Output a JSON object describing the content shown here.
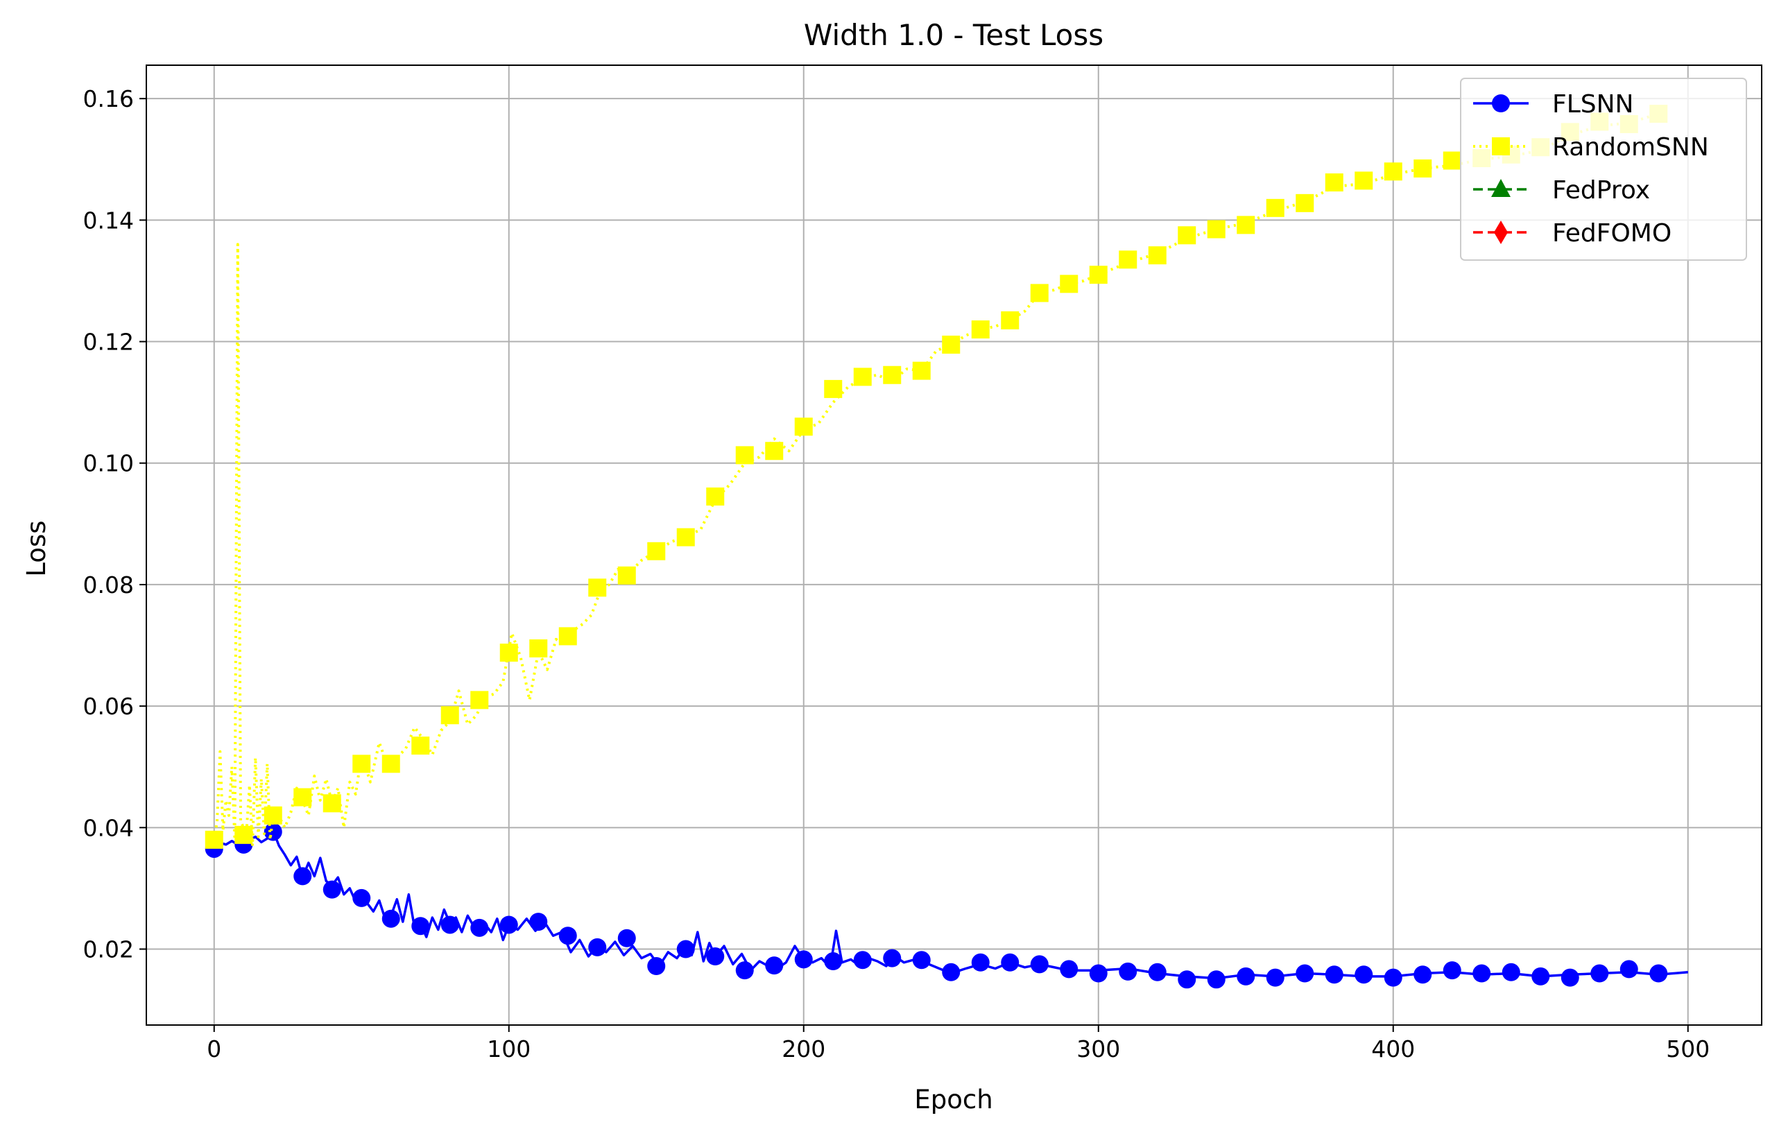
{
  "chart_data": {
    "type": "line",
    "title": "Width 1.0 - Test Loss",
    "xlabel": "Epoch",
    "ylabel": "Loss",
    "xlim": [
      -23,
      525
    ],
    "ylim": [
      0.0075,
      0.1655
    ],
    "xticks": [
      0,
      100,
      200,
      300,
      400,
      500
    ],
    "yticks": [
      0.02,
      0.04,
      0.06,
      0.08,
      0.1,
      0.12,
      0.14,
      0.16
    ],
    "grid": true,
    "legend_position": "top-right",
    "series": [
      {
        "name": "FLSNN",
        "color": "#0000ff",
        "linestyle": "solid",
        "marker": "circle",
        "marker_x": [
          0,
          10,
          20,
          30,
          40,
          50,
          60,
          70,
          80,
          90,
          100,
          110,
          120,
          130,
          140,
          150,
          160,
          170,
          180,
          190,
          200,
          210,
          220,
          230,
          240,
          250,
          260,
          270,
          280,
          290,
          300,
          310,
          320,
          330,
          340,
          350,
          360,
          370,
          380,
          390,
          400,
          410,
          420,
          430,
          440,
          450,
          460,
          470,
          480,
          490
        ],
        "marker_y": [
          0.0365,
          0.0372,
          0.0393,
          0.032,
          0.0298,
          0.0284,
          0.025,
          0.0238,
          0.024,
          0.0235,
          0.024,
          0.0245,
          0.0222,
          0.0203,
          0.0218,
          0.0172,
          0.02,
          0.0188,
          0.0165,
          0.0173,
          0.0183,
          0.018,
          0.0182,
          0.0185,
          0.0182,
          0.0162,
          0.0178,
          0.0178,
          0.0175,
          0.0167,
          0.016,
          0.0163,
          0.0162,
          0.015,
          0.015,
          0.0155,
          0.0153,
          0.016,
          0.0158,
          0.0158,
          0.0153,
          0.0158,
          0.0165,
          0.016,
          0.0162,
          0.0155,
          0.0153,
          0.016,
          0.0167,
          0.016
        ],
        "line_x": [
          0,
          2,
          4,
          6,
          8,
          10,
          12,
          14,
          16,
          18,
          20,
          22,
          24,
          26,
          28,
          30,
          32,
          34,
          36,
          38,
          40,
          42,
          44,
          46,
          48,
          50,
          52,
          54,
          56,
          58,
          60,
          62,
          64,
          66,
          68,
          70,
          72,
          74,
          76,
          78,
          80,
          82,
          84,
          86,
          88,
          90,
          92,
          94,
          96,
          98,
          100,
          103,
          106,
          109,
          112,
          115,
          118,
          121,
          124,
          127,
          130,
          133,
          136,
          139,
          142,
          145,
          148,
          151,
          154,
          157,
          160,
          162,
          164,
          166,
          168,
          170,
          173,
          176,
          179,
          182,
          185,
          188,
          191,
          194,
          197,
          200,
          203,
          206,
          209,
          211,
          213,
          216,
          219,
          222,
          225,
          228,
          231,
          234,
          237,
          240,
          245,
          250,
          255,
          260,
          265,
          270,
          275,
          280,
          290,
          300,
          310,
          320,
          330,
          340,
          350,
          360,
          370,
          380,
          390,
          400,
          410,
          420,
          430,
          440,
          450,
          460,
          470,
          480,
          490,
          500
        ],
        "line_y": [
          0.037,
          0.0375,
          0.0372,
          0.0378,
          0.0372,
          0.0368,
          0.038,
          0.0385,
          0.0376,
          0.0382,
          0.0395,
          0.037,
          0.0355,
          0.0338,
          0.0352,
          0.0318,
          0.0342,
          0.032,
          0.035,
          0.0312,
          0.0305,
          0.0318,
          0.029,
          0.03,
          0.0278,
          0.0285,
          0.0275,
          0.0262,
          0.028,
          0.025,
          0.0255,
          0.0282,
          0.0245,
          0.029,
          0.0235,
          0.0242,
          0.022,
          0.0252,
          0.0232,
          0.0265,
          0.0242,
          0.0252,
          0.0228,
          0.0255,
          0.0238,
          0.0235,
          0.024,
          0.0228,
          0.025,
          0.0215,
          0.024,
          0.0232,
          0.025,
          0.023,
          0.0245,
          0.0222,
          0.0228,
          0.0195,
          0.0215,
          0.0188,
          0.0205,
          0.0195,
          0.0212,
          0.019,
          0.0205,
          0.0185,
          0.0192,
          0.0172,
          0.0195,
          0.0185,
          0.0205,
          0.019,
          0.0228,
          0.018,
          0.021,
          0.0188,
          0.0205,
          0.0175,
          0.0192,
          0.0165,
          0.018,
          0.0172,
          0.0168,
          0.0178,
          0.0205,
          0.0182,
          0.0178,
          0.0185,
          0.017,
          0.023,
          0.0178,
          0.0183,
          0.0172,
          0.0185,
          0.018,
          0.0172,
          0.0188,
          0.0178,
          0.0182,
          0.018,
          0.017,
          0.016,
          0.0168,
          0.0175,
          0.0168,
          0.0178,
          0.017,
          0.0175,
          0.0165,
          0.0165,
          0.0168,
          0.016,
          0.0155,
          0.0152,
          0.0158,
          0.0155,
          0.016,
          0.0158,
          0.0155,
          0.0155,
          0.016,
          0.0162,
          0.0158,
          0.016,
          0.0155,
          0.0158,
          0.016,
          0.0162,
          0.0158,
          0.0162
        ]
      },
      {
        "name": "RandomSNN",
        "color": "#ffff00",
        "linestyle": "dotted",
        "marker": "square",
        "marker_x": [
          0,
          10,
          20,
          30,
          40,
          50,
          60,
          70,
          80,
          90,
          100,
          110,
          120,
          130,
          140,
          150,
          160,
          170,
          180,
          190,
          200,
          210,
          220,
          230,
          240,
          250,
          260,
          270,
          280,
          290,
          300,
          310,
          320,
          330,
          340,
          350,
          360,
          370,
          380,
          390,
          400,
          410,
          420,
          430,
          440,
          450,
          460,
          470,
          480,
          490
        ],
        "marker_y": [
          0.038,
          0.0388,
          0.042,
          0.045,
          0.044,
          0.0505,
          0.0505,
          0.0535,
          0.0585,
          0.061,
          0.0688,
          0.0695,
          0.0715,
          0.0795,
          0.0815,
          0.0855,
          0.0878,
          0.0945,
          0.1013,
          0.102,
          0.106,
          0.1122,
          0.1142,
          0.1145,
          0.1152,
          0.1195,
          0.122,
          0.1235,
          0.128,
          0.1295,
          0.131,
          0.1335,
          0.1342,
          0.1375,
          0.1385,
          0.1392,
          0.142,
          0.1428,
          0.1462,
          0.1465,
          0.148,
          0.1485,
          0.1498,
          0.1502,
          0.1508,
          0.152,
          0.1545,
          0.1562,
          0.1558,
          0.1575
        ],
        "line_x": [
          0,
          1,
          2,
          3,
          4,
          5,
          6,
          7,
          8,
          9,
          10,
          11,
          12,
          13,
          14,
          15,
          16,
          17,
          18,
          19,
          20,
          22,
          24,
          26,
          28,
          30,
          32,
          34,
          36,
          38,
          40,
          42,
          44,
          46,
          48,
          50,
          53,
          56,
          59,
          62,
          65,
          68,
          71,
          74,
          77,
          80,
          83,
          86,
          89,
          92,
          95,
          98,
          101,
          104,
          107,
          110,
          113,
          116,
          119,
          122,
          125,
          128,
          131,
          134,
          137,
          140,
          145,
          150,
          155,
          160,
          165,
          170,
          175,
          180,
          185,
          190,
          195,
          200,
          205,
          210,
          215,
          220,
          225,
          230,
          235,
          240,
          245,
          250,
          255,
          260,
          265,
          270,
          275,
          280,
          285,
          290,
          295,
          300,
          310,
          320,
          330,
          340,
          350,
          360,
          370,
          380,
          390,
          400,
          410,
          420,
          430,
          440,
          450,
          460,
          470,
          480,
          490
        ],
        "line_y": [
          0.038,
          0.041,
          0.0525,
          0.0395,
          0.0445,
          0.042,
          0.05,
          0.038,
          0.136,
          0.041,
          0.04,
          0.0395,
          0.047,
          0.037,
          0.0515,
          0.0385,
          0.048,
          0.039,
          0.0505,
          0.038,
          0.042,
          0.0418,
          0.04,
          0.0425,
          0.0465,
          0.0445,
          0.042,
          0.0485,
          0.0445,
          0.048,
          0.044,
          0.0465,
          0.04,
          0.0475,
          0.0455,
          0.052,
          0.0475,
          0.054,
          0.05,
          0.0515,
          0.053,
          0.0565,
          0.0545,
          0.052,
          0.056,
          0.0575,
          0.0625,
          0.057,
          0.0585,
          0.0615,
          0.062,
          0.064,
          0.072,
          0.068,
          0.061,
          0.069,
          0.066,
          0.071,
          0.07,
          0.0725,
          0.0735,
          0.075,
          0.079,
          0.08,
          0.0825,
          0.0815,
          0.084,
          0.0855,
          0.087,
          0.088,
          0.089,
          0.094,
          0.0965,
          0.1,
          0.101,
          0.104,
          0.102,
          0.1055,
          0.1065,
          0.11,
          0.1125,
          0.114,
          0.1145,
          0.1135,
          0.1155,
          0.1152,
          0.1185,
          0.1195,
          0.121,
          0.122,
          0.1225,
          0.1235,
          0.125,
          0.128,
          0.1285,
          0.1295,
          0.13,
          0.131,
          0.133,
          0.1345,
          0.137,
          0.1385,
          0.1395,
          0.1415,
          0.143,
          0.1455,
          0.146,
          0.1475,
          0.1485,
          0.149,
          0.15,
          0.1505,
          0.1515,
          0.154,
          0.1555,
          0.156,
          0.1575
        ]
      },
      {
        "name": "FedProx",
        "color": "#008000",
        "linestyle": "dashed",
        "marker": "triangle",
        "marker_x": [],
        "marker_y": [],
        "line_x": [],
        "line_y": []
      },
      {
        "name": "FedFOMO",
        "color": "#ff0000",
        "linestyle": "dashed",
        "marker": "diamond",
        "marker_x": [],
        "marker_y": [],
        "line_x": [],
        "line_y": []
      }
    ]
  }
}
